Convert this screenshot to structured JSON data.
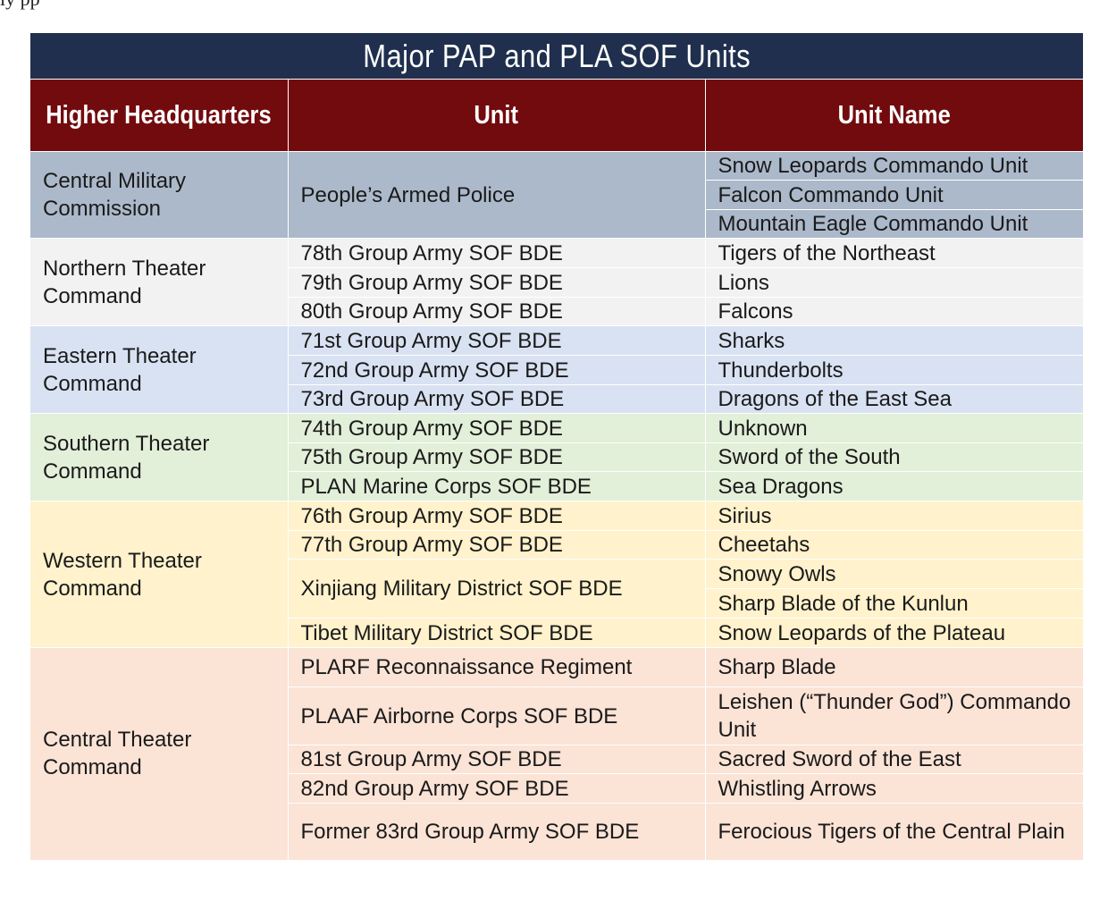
{
  "fragment_text": "ly                pp",
  "table": {
    "title": "Major PAP and PLA SOF Units",
    "headers": [
      "Higher Headquarters",
      "Unit",
      "Unit Name"
    ],
    "groups": [
      {
        "hq": "Central Military Commission",
        "color": "#acb9cb",
        "units": [
          {
            "unit": "People’s Armed Police",
            "names": [
              "Snow Leopards Commando Unit",
              "Falcon Commando Unit",
              "Mountain Eagle Commando Unit"
            ]
          }
        ]
      },
      {
        "hq": "Northern Theater Command",
        "color": "#f2f2f2",
        "units": [
          {
            "unit": "78th Group Army SOF BDE",
            "names": [
              "Tigers of the Northeast"
            ]
          },
          {
            "unit": "79th Group Army SOF BDE",
            "names": [
              "Lions"
            ]
          },
          {
            "unit": "80th Group Army SOF BDE",
            "names": [
              "Falcons"
            ]
          }
        ]
      },
      {
        "hq": "Eastern Theater Command",
        "color": "#d9e2f3",
        "units": [
          {
            "unit": "71st Group Army SOF BDE",
            "names": [
              "Sharks"
            ]
          },
          {
            "unit": "72nd Group Army SOF BDE",
            "names": [
              "Thunderbolts"
            ]
          },
          {
            "unit": "73rd Group Army SOF BDE",
            "names": [
              "Dragons of the East Sea"
            ]
          }
        ]
      },
      {
        "hq": "Southern Theater Command",
        "color": "#e2efd9",
        "units": [
          {
            "unit": "74th Group Army SOF BDE",
            "names": [
              "Unknown"
            ]
          },
          {
            "unit": "75th Group Army SOF BDE",
            "names": [
              "Sword of the South"
            ]
          },
          {
            "unit": "PLAN Marine Corps SOF BDE",
            "names": [
              "Sea Dragons"
            ]
          }
        ]
      },
      {
        "hq": "Western Theater Command",
        "color": "#fff2cc",
        "units": [
          {
            "unit": "76th Group Army SOF BDE",
            "names": [
              "Sirius"
            ]
          },
          {
            "unit": "77th Group Army SOF BDE",
            "names": [
              "Cheetahs"
            ]
          },
          {
            "unit": "Xinjiang Military District SOF BDE",
            "names": [
              "Snowy Owls",
              "Sharp Blade of the Kunlun"
            ]
          },
          {
            "unit": "Tibet Military District SOF BDE",
            "names": [
              "Snow Leopards of the Plateau"
            ]
          }
        ]
      },
      {
        "hq": "Central Theater Command",
        "color": "#fbe3d6",
        "units": [
          {
            "unit": "PLARF Reconnaissance Regiment",
            "names": [
              "Sharp Blade"
            ]
          },
          {
            "unit": "PLAAF Airborne Corps SOF BDE",
            "names": [
              "Leishen (“Thunder God”) Commando Unit"
            ]
          },
          {
            "unit": "81st Group Army SOF BDE",
            "names": [
              "Sacred Sword of the East"
            ]
          },
          {
            "unit": "82nd Group Army SOF BDE",
            "names": [
              "Whistling Arrows"
            ]
          },
          {
            "unit": "Former 83rd Group Army SOF BDE",
            "names": [
              "Ferocious Tigers of the Central Plain"
            ]
          }
        ]
      }
    ]
  }
}
